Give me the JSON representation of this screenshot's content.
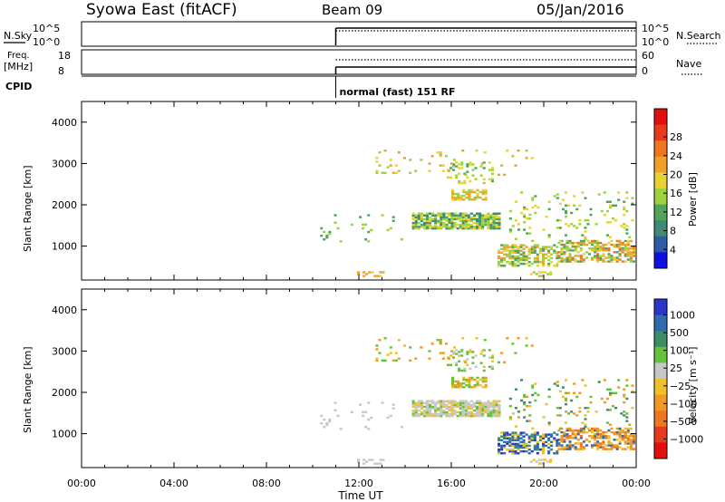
{
  "header": {
    "title_left": "Syowa East (fitACF)",
    "title_center": "Beam 09",
    "title_right": "05/Jan/2016"
  },
  "aux": {
    "nsky_label": "N.Sky",
    "nsky_ticks": [
      "10^5",
      "10^0"
    ],
    "nsearch_label": "N.Search",
    "nsearch_ticks": [
      "10^5",
      "10^0"
    ],
    "freq_label_1": "Freq.",
    "freq_label_2": "[MHz]",
    "freq_ticks": [
      "18",
      "8"
    ],
    "nave_label": "Nave",
    "nave_ticks": [
      "60",
      "0"
    ],
    "cpid_label": "CPID",
    "cpid_text": "normal (fast) 151 RF",
    "data_start_hour": 11.0
  },
  "chart_data": [
    {
      "type": "heatmap",
      "name": "power",
      "ylabel": "Slant Range [km]",
      "xlabel": "Time UT",
      "ylim": [
        180,
        4500
      ],
      "xlim": [
        0,
        24
      ],
      "yticks": [
        "1000",
        "2000",
        "3000",
        "4000"
      ],
      "colorbar_label": "Power [dB]",
      "colorbar_ticks": [
        "4",
        "8",
        "12",
        "16",
        "20",
        "24",
        "28"
      ],
      "colors": [
        "#1010e0",
        "#2e5aa8",
        "#3f8a74",
        "#52a45a",
        "#9cd33e",
        "#e9d232",
        "#f0a128",
        "#ee7620",
        "#e83a1c",
        "#e11010"
      ]
    },
    {
      "type": "heatmap",
      "name": "velocity",
      "ylabel": "Slant Range [km]",
      "xlabel": "Time UT",
      "ylim": [
        180,
        4500
      ],
      "xlim": [
        0,
        24
      ],
      "yticks": [
        "1000",
        "2000",
        "3000",
        "4000"
      ],
      "colorbar_label": "Velocity [m s⁻¹]",
      "colorbar_ticks": [
        "1000",
        "500",
        "100",
        "25",
        "−25",
        "−100",
        "−500",
        "−1000"
      ],
      "colors": [
        "#2b36c9",
        "#2e6cad",
        "#3e8d66",
        "#63c43a",
        "#c7c7c7",
        "#f0c02a",
        "#f09a25",
        "#ee7620",
        "#e83a1c",
        "#e11010"
      ]
    }
  ],
  "xaxis": {
    "label": "Time UT",
    "ticks": [
      "00:00",
      "04:00",
      "08:00",
      "12:00",
      "16:00",
      "20:00",
      "00:00"
    ]
  }
}
